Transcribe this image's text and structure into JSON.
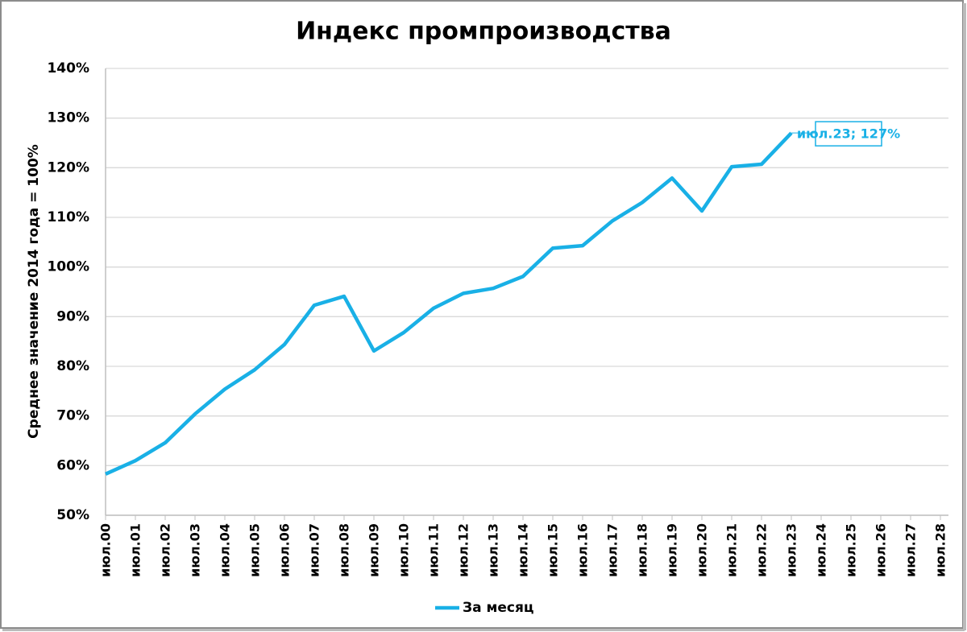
{
  "chart_data": {
    "type": "line",
    "title": "Индекс промпроизводства",
    "y_label": "Среднее значение 2014 года = 100%",
    "categories": [
      "июл.00",
      "июл.01",
      "июл.02",
      "июл.03",
      "июл.04",
      "июл.05",
      "июл.06",
      "июл.07",
      "июл.08",
      "июл.09",
      "июл.10",
      "июл.11",
      "июл.12",
      "июл.13",
      "июл.14",
      "июл.15",
      "июл.16",
      "июл.17",
      "июл.18",
      "июл.19",
      "июл.20",
      "июл.21",
      "июл.22",
      "июл.23",
      "июл.24",
      "июл.25",
      "июл.26",
      "июл.27",
      "июл.28"
    ],
    "series": [
      {
        "name": "За месяц",
        "color": "#19b0e6",
        "values": [
          58.3,
          61.0,
          64.6,
          70.4,
          75.4,
          79.3,
          84.4,
          92.3,
          94.1,
          83.1,
          86.8,
          91.7,
          94.7,
          95.7,
          98.1,
          103.8,
          104.3,
          109.3,
          113.0,
          117.9,
          111.3,
          120.2,
          120.7,
          127,
          null,
          null,
          null,
          null,
          null
        ],
        "value_labels": [
          null,
          null,
          null,
          null,
          null,
          null,
          null,
          null,
          null,
          null,
          null,
          null,
          null,
          null,
          null,
          null,
          null,
          null,
          null,
          null,
          null,
          null,
          null,
          "июл.23; 127%",
          null,
          null,
          null,
          null,
          null
        ]
      }
    ],
    "ylim": [
      50,
      140
    ],
    "yticks": [
      {
        "value": 50,
        "label": "50%"
      },
      {
        "value": 60,
        "label": "60%"
      },
      {
        "value": 70,
        "label": "70%"
      },
      {
        "value": 80,
        "label": "80%"
      },
      {
        "value": 90,
        "label": "90%"
      },
      {
        "value": 100,
        "label": "100%"
      },
      {
        "value": 110,
        "label": "110%"
      },
      {
        "value": 120,
        "label": "120%"
      },
      {
        "value": 130,
        "label": "130%"
      },
      {
        "value": 140,
        "label": "140%"
      }
    ],
    "grid": true,
    "legend": "bottom"
  }
}
